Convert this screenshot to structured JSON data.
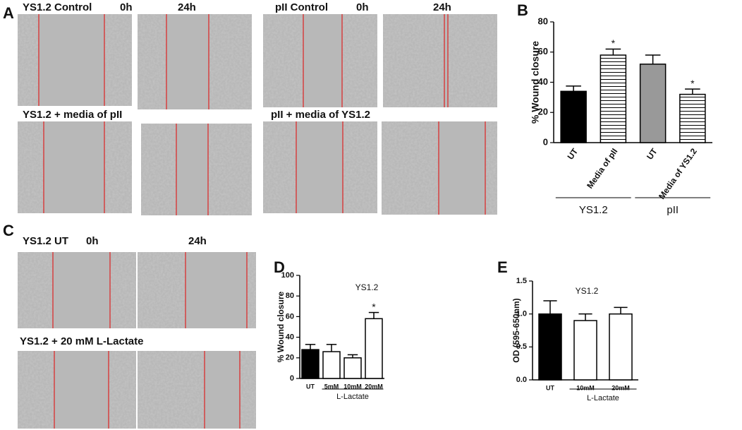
{
  "panels": [
    "A",
    "B",
    "C",
    "D",
    "E"
  ],
  "captions": {
    "a_left_top": [
      "YS1.2 Control",
      "0h",
      "24h"
    ],
    "a_left_bottom": "YS1.2 + media of pII",
    "a_right_top": [
      "pII Control",
      "0h",
      "24h"
    ],
    "a_right_bottom": "pII + media of YS1.2",
    "c_top": [
      "YS1.2 UT",
      "0h",
      "24h"
    ],
    "c_bottom": "YS1.2 + 20 mM L-Lactate"
  },
  "chart_data": [
    {
      "type": "bar",
      "ylabel": "% Wound closure",
      "categories": [
        "UT",
        "Media of pII",
        "UT",
        "Media of YS1.2"
      ],
      "values": [
        34,
        58,
        52,
        32
      ],
      "errors": [
        3.5,
        4,
        6,
        3.5
      ],
      "colors": [
        "#000000",
        "#ffffff",
        "#999999",
        "#ffffff"
      ],
      "hatch": [
        false,
        true,
        false,
        true
      ],
      "significance": [
        null,
        "*",
        null,
        "*"
      ],
      "groups": [
        {
          "name": "YS1.2",
          "span": [
            0,
            1
          ]
        },
        {
          "name": "pII",
          "span": [
            2,
            3
          ]
        }
      ],
      "ylim": [
        0,
        80
      ],
      "yticks": [
        0,
        20,
        40,
        60,
        80
      ]
    },
    {
      "type": "bar",
      "title": "YS1.2",
      "ylabel": "% Wound closure",
      "categories": [
        "UT",
        "5mM",
        "10mM",
        "20mM"
      ],
      "values": [
        28,
        26,
        20,
        58
      ],
      "errors": [
        5,
        7,
        3,
        6
      ],
      "colors": [
        "#000000",
        "#ffffff",
        "#ffffff",
        "#ffffff"
      ],
      "hatch": [
        false,
        false,
        false,
        false
      ],
      "significance": [
        null,
        null,
        null,
        "*"
      ],
      "groups": [
        {
          "name": "L-Lactate",
          "span": [
            1,
            3
          ]
        }
      ],
      "ylim": [
        0,
        100
      ],
      "yticks": [
        0,
        20,
        40,
        60,
        80,
        100
      ]
    },
    {
      "type": "bar",
      "title": "YS1.2",
      "ylabel": "OD (595-650nm)",
      "categories": [
        "UT",
        "10mM",
        "20mM"
      ],
      "values": [
        1.0,
        0.9,
        1.0
      ],
      "errors": [
        0.2,
        0.1,
        0.1
      ],
      "colors": [
        "#000000",
        "#ffffff",
        "#ffffff"
      ],
      "hatch": [
        false,
        false,
        false
      ],
      "significance": [
        null,
        null,
        null
      ],
      "groups": [
        {
          "name": "L-Lactate",
          "span": [
            1,
            2
          ]
        }
      ],
      "ylim": [
        0,
        1.5
      ],
      "yticks": [
        {
          "value": 0,
          "label": "0.0"
        },
        0.5,
        {
          "value": 1,
          "label": "1.0"
        },
        1.5
      ]
    }
  ]
}
